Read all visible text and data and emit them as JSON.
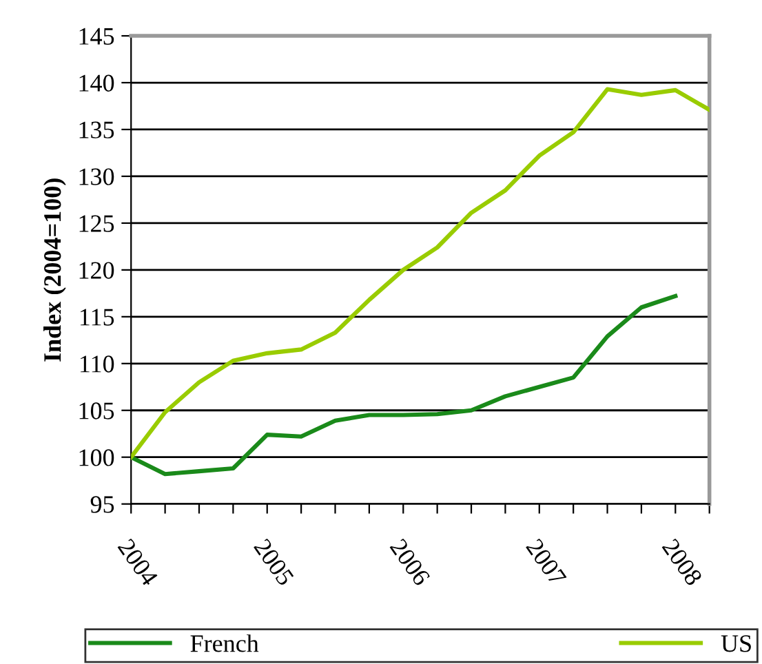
{
  "chart_data": {
    "type": "line",
    "ylabel": "Index (2004=100)",
    "categories": [
      "2004",
      null,
      null,
      null,
      "2005",
      null,
      null,
      null,
      "2006",
      null,
      null,
      null,
      "2007",
      null,
      null,
      null,
      "2008",
      null
    ],
    "series": [
      {
        "name": "French",
        "color": "#1a8a1a",
        "values": [
          100,
          98.2,
          98.5,
          98.8,
          102.4,
          102.2,
          103.9,
          104.5,
          104.5,
          104.6,
          105.0,
          106.5,
          107.5,
          108.5,
          112.9,
          116.0,
          117.2,
          null
        ]
      },
      {
        "name": "US",
        "color": "#99cc00",
        "values": [
          100,
          104.8,
          108.0,
          110.3,
          111.1,
          111.5,
          113.3,
          116.8,
          120.0,
          122.4,
          126.1,
          128.5,
          132.2,
          134.7,
          139.3,
          138.7,
          139.2,
          137.1
        ]
      }
    ],
    "ylim": [
      95,
      145
    ],
    "yticks": [
      95,
      100,
      105,
      110,
      115,
      120,
      125,
      130,
      135,
      140,
      145
    ],
    "grid": "y",
    "legend": "bottom",
    "marker": "none",
    "line_style": "solid"
  }
}
